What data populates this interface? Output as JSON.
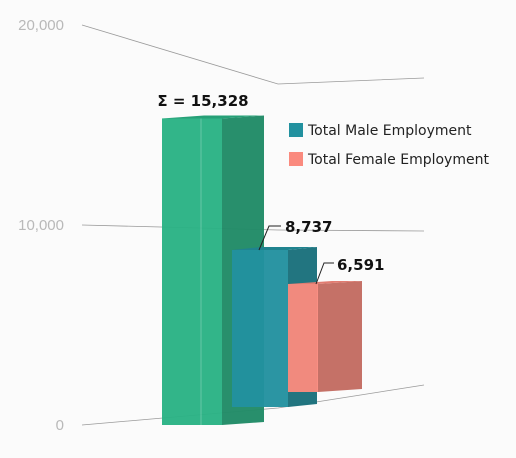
{
  "chart_data": {
    "type": "bar",
    "style": "3d-stacked",
    "title": "",
    "xlabel": "",
    "ylabel": "",
    "ylim": [
      0,
      20000
    ],
    "y_ticks": [
      0,
      10000,
      20000
    ],
    "y_tick_labels": [
      "0",
      "10,000",
      "20,000"
    ],
    "grid": true,
    "legend_position": "right",
    "total": {
      "label": "Σ = 15,328",
      "value": 15328,
      "color": "#2ab284"
    },
    "series": [
      {
        "name": "Total Male Employment",
        "value": 8737,
        "label": "8,737",
        "color": "#22919f"
      },
      {
        "name": "Total Female Employment",
        "value": 6591,
        "label": "6,591",
        "color": "#fa8a7e"
      }
    ]
  }
}
